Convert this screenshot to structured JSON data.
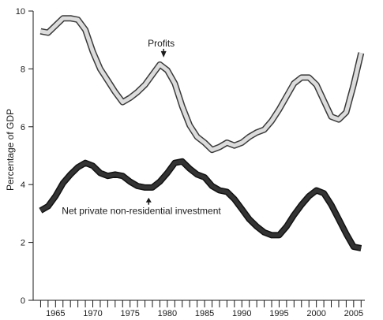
{
  "chart_data": {
    "type": "line",
    "title": "",
    "xlabel": "",
    "ylabel": "Percentage of GDP",
    "xlim": [
      1962,
      2006.5
    ],
    "ylim": [
      0,
      10
    ],
    "x_ticks": [
      1965,
      1970,
      1975,
      1980,
      1985,
      1990,
      1995,
      2000,
      2005
    ],
    "y_ticks": [
      0,
      2,
      4,
      6,
      8,
      10
    ],
    "grid": false,
    "legend": "none",
    "series": [
      {
        "key": "profits",
        "color_fill": "#dcdcdc",
        "color_edge": "#3a3a3a",
        "x": [
          1963,
          1964,
          1965,
          1966,
          1967,
          1968,
          1969,
          1970,
          1971,
          1972,
          1973,
          1974,
          1975,
          1976,
          1977,
          1978,
          1979,
          1980,
          1981,
          1982,
          1983,
          1984,
          1985,
          1986,
          1987,
          1988,
          1989,
          1990,
          1991,
          1992,
          1993,
          1994,
          1995,
          1996,
          1997,
          1998,
          1999,
          2000,
          2001,
          2002,
          2003,
          2004,
          2005,
          2006
        ],
        "values": [
          9.3,
          9.25,
          9.5,
          9.75,
          9.75,
          9.7,
          9.35,
          8.6,
          8.0,
          7.6,
          7.2,
          6.85,
          7.0,
          7.2,
          7.45,
          7.8,
          8.15,
          7.95,
          7.5,
          6.7,
          6.05,
          5.65,
          5.45,
          5.2,
          5.3,
          5.45,
          5.35,
          5.45,
          5.65,
          5.8,
          5.9,
          6.2,
          6.6,
          7.05,
          7.5,
          7.7,
          7.7,
          7.45,
          6.9,
          6.35,
          6.25,
          6.5,
          7.45,
          8.55
        ]
      },
      {
        "key": "investment",
        "color_fill": "#333333",
        "color_edge": "#111111",
        "x": [
          1963,
          1964,
          1965,
          1966,
          1967,
          1968,
          1969,
          1970,
          1971,
          1972,
          1973,
          1974,
          1975,
          1976,
          1977,
          1978,
          1979,
          1980,
          1981,
          1982,
          1983,
          1984,
          1985,
          1986,
          1987,
          1988,
          1989,
          1990,
          1991,
          1992,
          1993,
          1994,
          1995,
          1996,
          1997,
          1998,
          1999,
          2000,
          2001,
          2002,
          2003,
          2004,
          2005,
          2006
        ],
        "values": [
          3.1,
          3.25,
          3.6,
          4.05,
          4.35,
          4.6,
          4.75,
          4.65,
          4.4,
          4.3,
          4.35,
          4.3,
          4.1,
          3.95,
          3.9,
          3.9,
          4.1,
          4.4,
          4.75,
          4.8,
          4.55,
          4.35,
          4.25,
          3.95,
          3.8,
          3.75,
          3.5,
          3.15,
          2.8,
          2.55,
          2.35,
          2.25,
          2.25,
          2.55,
          2.95,
          3.3,
          3.6,
          3.8,
          3.7,
          3.3,
          2.8,
          2.3,
          1.85,
          1.8
        ]
      }
    ],
    "annotations": [
      {
        "key": "profits",
        "text": "Profits",
        "arrow": "down",
        "x": 1979.5,
        "y": 8.15
      },
      {
        "key": "investment",
        "text": "Net private non-residential investment",
        "arrow": "up",
        "x": 1977.5,
        "y": 3.85
      }
    ]
  }
}
